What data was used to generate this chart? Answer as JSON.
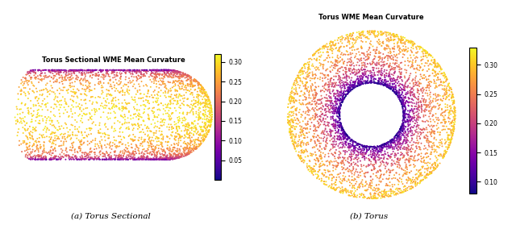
{
  "title1": "Torus Sectional WME Mean Curvature",
  "title2": "Torus WME Mean Curvature",
  "caption1": "(a) Torus Sectional",
  "caption2": "(b) Torus",
  "colormap": "plasma",
  "vmin1": 0.0,
  "vmax1": 0.32,
  "vmin2": 0.08,
  "vmax2": 0.33,
  "colorbar1_ticks": [
    0.05,
    0.1,
    0.15,
    0.2,
    0.25,
    0.3
  ],
  "colorbar2_ticks": [
    0.1,
    0.15,
    0.2,
    0.25,
    0.3
  ],
  "n_points_sectional": 3500,
  "n_points_torus": 5000,
  "R_torus": 1.0,
  "r_torus": 0.45,
  "seed": 42,
  "point_size": 2.0,
  "bg_color": "#ffffff"
}
